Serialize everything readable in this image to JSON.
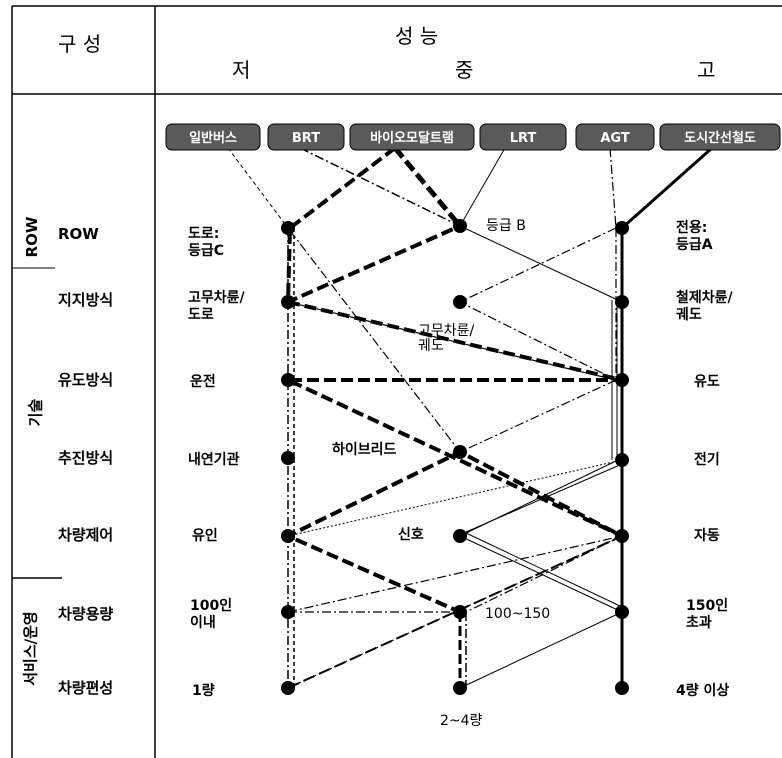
{
  "header": {
    "composition": "구 성",
    "performance": "성    능",
    "low": "저",
    "mid": "중",
    "high": "고"
  },
  "groups": {
    "row": "ROW",
    "tech": "기술",
    "service": "서비스/운영"
  },
  "modes": [
    "일반버스",
    "BRT",
    "바이오모달트램",
    "LRT",
    "AGT",
    "도시간선철도"
  ],
  "rows": [
    {
      "name": "ROW",
      "low": "도로:\n등급C",
      "mid": "등급 B",
      "high": "전용:\n등급A"
    },
    {
      "name": "지지방식",
      "low": "고무차륜/\n도로",
      "mid": "고무차륜/\n궤도",
      "high": "철제차륜/\n궤도"
    },
    {
      "name": "유도방식",
      "low": "운전",
      "mid": "",
      "high": "유도"
    },
    {
      "name": "추진방식",
      "low": "내연기관",
      "mid": "하이브리드",
      "high": "전기"
    },
    {
      "name": "차량제어",
      "low": "유인",
      "mid": "신호",
      "high": "자동"
    },
    {
      "name": "차량용량",
      "low": "100인\n이내",
      "mid": "100~150",
      "high": "150인\n초과"
    },
    {
      "name": "차량편성",
      "low": "1량",
      "mid": "2~4량",
      "high": "4량 이상"
    }
  ]
}
